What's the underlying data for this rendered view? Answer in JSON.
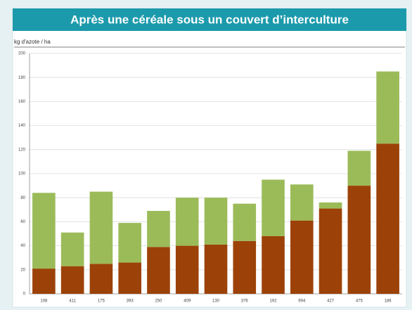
{
  "chart_data": {
    "type": "stacked_bar",
    "title": "Après une céréale sous un couvert d’interculture",
    "y_axis_label": "kg d'azote / ha",
    "categories": [
      "108",
      "411",
      "175",
      "393",
      "250",
      "409",
      "130",
      "376",
      "192",
      "994",
      "427",
      "475",
      "186"
    ],
    "series": [
      {
        "color": "#9c4208",
        "values": [
          21,
          23,
          25,
          26,
          39,
          40,
          41,
          44,
          48,
          61,
          71,
          90,
          125
        ]
      },
      {
        "color": "#9bbb59",
        "values": [
          63,
          28,
          60,
          33,
          30,
          40,
          39,
          31,
          47,
          30,
          5,
          29,
          60
        ]
      }
    ],
    "ylim": [
      0,
      200
    ],
    "yticks": [
      0,
      20,
      40,
      60,
      80,
      100,
      120,
      140,
      160,
      180,
      200
    ],
    "grid": true
  }
}
